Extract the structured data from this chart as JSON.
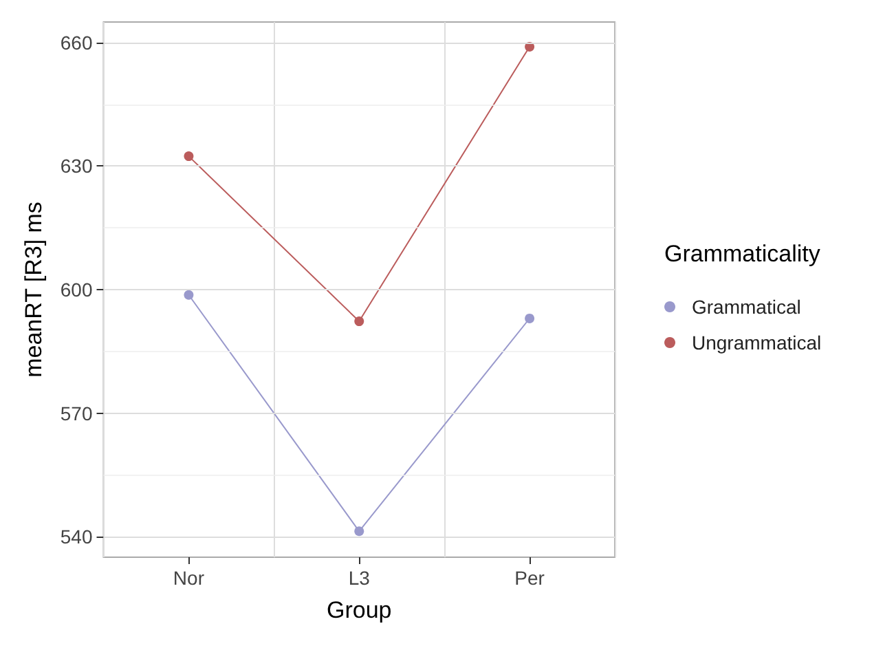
{
  "chart_data": {
    "type": "line",
    "xlabel": "Group",
    "ylabel": "meanRT [R3] ms",
    "legend_title": "Grammaticality",
    "categories": [
      "Nor",
      "L3",
      "Per"
    ],
    "series": [
      {
        "name": "Grammatical",
        "color": "#9999cc",
        "values": [
          598.7,
          541.3,
          593
        ]
      },
      {
        "name": "Ungrammatical",
        "color": "#bb5c5c",
        "values": [
          632.4,
          592.3,
          659
        ]
      }
    ],
    "ylim": [
      535,
      665
    ],
    "yticks": [
      540,
      570,
      600,
      630,
      660
    ],
    "grid": true,
    "legend": "right",
    "marker": "circle",
    "line_style": "solid"
  }
}
